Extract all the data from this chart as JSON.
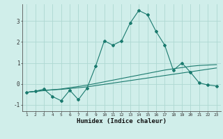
{
  "x": [
    1,
    2,
    3,
    4,
    5,
    6,
    7,
    8,
    9,
    10,
    11,
    12,
    13,
    14,
    15,
    16,
    17,
    18,
    19,
    20,
    21,
    22,
    23
  ],
  "y_main": [
    -0.4,
    -0.35,
    -0.25,
    -0.6,
    -0.8,
    -0.3,
    -0.75,
    -0.2,
    0.85,
    2.05,
    1.85,
    2.05,
    2.9,
    3.5,
    3.3,
    2.5,
    1.85,
    0.65,
    1.0,
    0.55,
    0.05,
    -0.05,
    -0.1
  ],
  "y_line1": [
    -0.4,
    -0.35,
    -0.3,
    -0.28,
    -0.26,
    -0.22,
    -0.18,
    -0.14,
    -0.08,
    -0.02,
    0.04,
    0.1,
    0.16,
    0.22,
    0.28,
    0.34,
    0.4,
    0.46,
    0.52,
    0.58,
    0.64,
    0.7,
    0.76
  ],
  "y_line2": [
    -0.4,
    -0.36,
    -0.32,
    -0.28,
    -0.24,
    -0.18,
    -0.12,
    -0.06,
    0.02,
    0.1,
    0.18,
    0.26,
    0.34,
    0.42,
    0.5,
    0.58,
    0.66,
    0.72,
    0.78,
    0.84,
    0.88,
    0.9,
    0.92
  ],
  "line_color": "#1a7a6e",
  "bg_color": "#d0eeea",
  "grid_color": "#aed8d2",
  "xlabel": "Humidex (Indice chaleur)",
  "ylim": [
    -1.3,
    3.8
  ],
  "xlim": [
    0.5,
    23.5
  ],
  "yticks": [
    -1,
    0,
    1,
    2,
    3
  ]
}
